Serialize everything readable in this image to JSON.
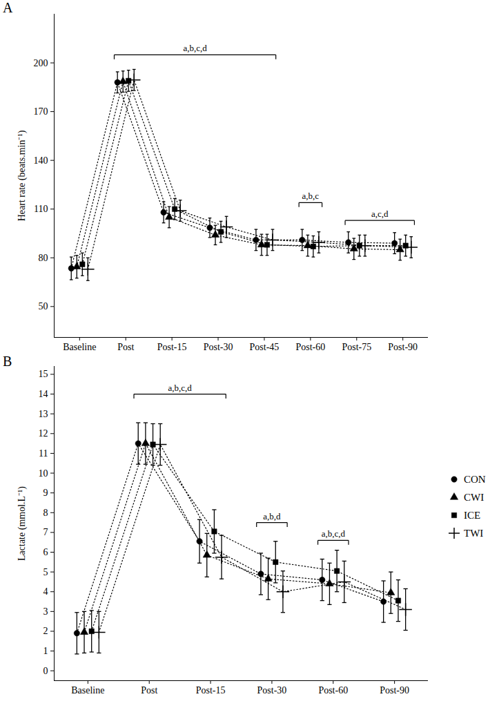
{
  "chart_data": [
    {
      "type": "line",
      "title": "A",
      "y_label": "Heart rate (beats.min⁻¹)",
      "categories": [
        "Baseline",
        "Post",
        "Post-15",
        "Post-30",
        "Post-45",
        "Post-60",
        "Post-75",
        "Post-90"
      ],
      "ylim": [
        31,
        230
      ],
      "yticks": [
        50,
        80,
        110,
        140,
        170,
        200
      ],
      "grid": false,
      "series": [
        {
          "name": "CON",
          "color": "#000000",
          "marker": "circle",
          "line_style": "dotted",
          "values": [
            73.5,
            188,
            108,
            98.5,
            91,
            91,
            89.5,
            89
          ],
          "errors": [
            7,
            6.5,
            6.5,
            6,
            6.5,
            6.5,
            6.5,
            6.5
          ]
        },
        {
          "name": "CWI",
          "color": "#000000",
          "marker": "triangle",
          "line_style": "dotted",
          "values": [
            74.5,
            188.5,
            105,
            94,
            88,
            87.5,
            85.5,
            85
          ],
          "errors": [
            7,
            6.5,
            6.5,
            6,
            6.5,
            6.5,
            6.5,
            6.5
          ]
        },
        {
          "name": "ICE",
          "color": "#000000",
          "marker": "square",
          "line_style": "dotted",
          "values": [
            76,
            189,
            110,
            96,
            88,
            87,
            87.5,
            87.5
          ],
          "errors": [
            7,
            6.5,
            6.5,
            6.5,
            6.5,
            6.5,
            6.5,
            6.5
          ]
        },
        {
          "name": "TWI",
          "color": "#000000",
          "marker": "plus",
          "line_style": "dotted",
          "values": [
            73,
            189.5,
            109,
            99,
            91,
            89.5,
            87.5,
            86.5
          ],
          "errors": [
            7,
            6.5,
            6.5,
            6.5,
            6.5,
            6.5,
            6.5,
            6.5
          ]
        }
      ],
      "annotations": [
        {
          "text": "a,b,c,d",
          "from": "Post",
          "to": "Post-45",
          "y": 205
        },
        {
          "text": "a,b,c",
          "from": "Post-60",
          "to": "Post-60",
          "y": 114
        },
        {
          "text": "a,c,d",
          "from": "Post-75",
          "to": "Post-90",
          "y": 103
        }
      ]
    },
    {
      "type": "line",
      "title": "B",
      "y_label": "Lactate (mmol.L⁻¹)",
      "categories": [
        "Baseline",
        "Post",
        "Post-15",
        "Post-30",
        "Post-60",
        "Post-90"
      ],
      "ylim": [
        -0.5,
        15.4
      ],
      "yticks": [
        0,
        1,
        2,
        3,
        4,
        5,
        6,
        7,
        8,
        9,
        10,
        11,
        12,
        13,
        14,
        15
      ],
      "grid": false,
      "legend": "right",
      "series": [
        {
          "name": "CON",
          "color": "#000000",
          "marker": "circle",
          "line_style": "dotted",
          "values": [
            1.9,
            11.5,
            6.55,
            4.9,
            4.6,
            3.5
          ],
          "errors": [
            1.05,
            1.05,
            1.1,
            1.05,
            1.05,
            1.05
          ]
        },
        {
          "name": "CWI",
          "color": "#000000",
          "marker": "triangle",
          "line_style": "dotted",
          "values": [
            1.95,
            11.5,
            5.85,
            4.65,
            4.4,
            3.95
          ],
          "errors": [
            1.05,
            1.05,
            1.1,
            1.05,
            1.05,
            1.05
          ]
        },
        {
          "name": "ICE",
          "color": "#000000",
          "marker": "square",
          "line_style": "dotted",
          "values": [
            2.0,
            11.45,
            7.05,
            5.5,
            5.05,
            3.55
          ],
          "errors": [
            1.05,
            1.05,
            1.1,
            1.05,
            1.05,
            1.05
          ]
        },
        {
          "name": "TWI",
          "color": "#000000",
          "marker": "plus",
          "line_style": "dotted",
          "values": [
            1.95,
            11.45,
            5.75,
            4.0,
            4.5,
            3.1
          ],
          "errors": [
            1.05,
            1.05,
            1.1,
            1.05,
            1.05,
            1.05
          ]
        }
      ],
      "annotations": [
        {
          "text": "a,b,c,d",
          "from": "Post",
          "to": "Post-15",
          "y": 14
        },
        {
          "text": "a,b,d",
          "from": "Post-30",
          "to": "Post-30",
          "y": 7.5
        },
        {
          "text": "a,b,c,d",
          "from": "Post-60",
          "to": "Post-60",
          "y": 6.6
        }
      ]
    }
  ]
}
